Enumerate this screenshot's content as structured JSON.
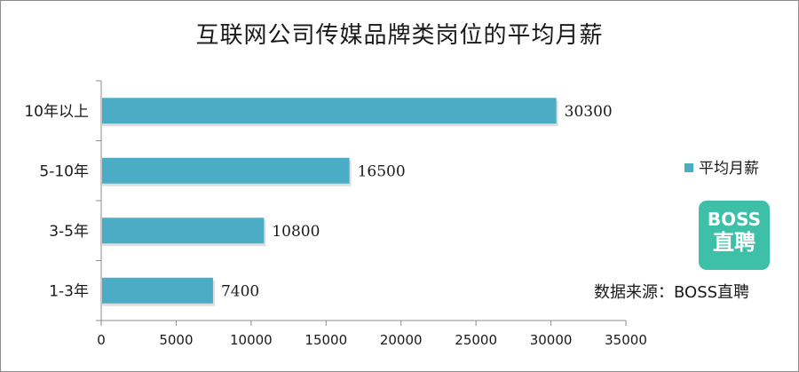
{
  "chart_data": {
    "type": "bar",
    "orientation": "horizontal",
    "title": "互联网公司传媒品牌类岗位的平均月薪",
    "categories": [
      "10年以上",
      "5-10年",
      "3-5年",
      "1-3年"
    ],
    "series": [
      {
        "name": "平均月薪",
        "values": [
          30300,
          16500,
          10800,
          7400
        ],
        "color": "#4bacc6"
      }
    ],
    "data_labels": [
      "30300",
      "16500",
      "10800",
      "7400"
    ],
    "xlim": [
      0,
      35000
    ],
    "x_ticks": [
      "0",
      "5000",
      "10000",
      "15000",
      "20000",
      "25000",
      "30000",
      "35000"
    ],
    "grid": false,
    "legend_position": "right"
  },
  "logo": {
    "line1": "BOSS",
    "line2": "直聘",
    "color": "#3dbfa8"
  },
  "source_text": "数据来源：BOSS直聘"
}
